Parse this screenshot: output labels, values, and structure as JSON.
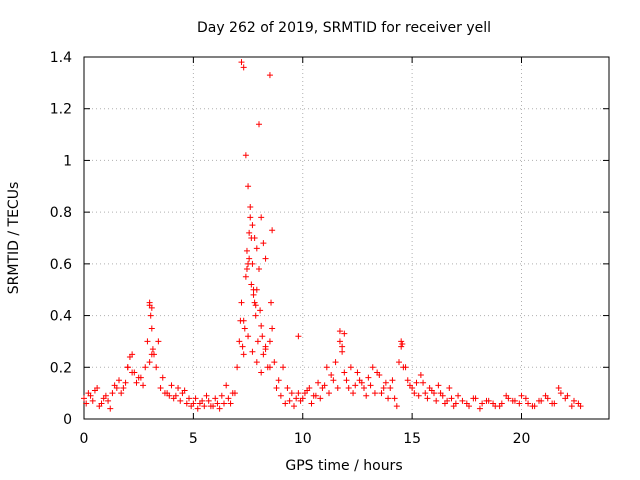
{
  "chart_data": {
    "type": "scatter",
    "title": "Day 262 of 2019, SRMTID for receiver yell",
    "xlabel": "GPS time / hours",
    "ylabel": "SRMTID / TECUs",
    "xlim": [
      0,
      24
    ],
    "ylim": [
      0,
      1.4
    ],
    "x_ticks": [
      0,
      5,
      10,
      15,
      20
    ],
    "x_tick_labels": [
      "0",
      "5",
      "10",
      "15",
      "20"
    ],
    "y_ticks": [
      0,
      0.2,
      0.4,
      0.6,
      0.8,
      1.0,
      1.2,
      1.4
    ],
    "y_tick_labels": [
      "0",
      "0.2",
      "0.4",
      "0.6",
      "0.8",
      "1",
      "1.2",
      "1.4"
    ],
    "grid": true,
    "marker": "+",
    "color": "#ff0000",
    "series": [
      {
        "name": "SRMTID",
        "x": [
          0.0,
          0.2,
          0.4,
          0.6,
          0.8,
          1.0,
          1.2,
          1.4,
          1.6,
          1.8,
          2.0,
          2.1,
          2.2,
          2.4,
          2.6,
          2.8,
          2.9,
          3.0,
          3.05,
          3.1,
          3.15,
          3.2,
          3.3,
          3.5,
          3.7,
          3.9,
          4.1,
          4.3,
          4.5,
          4.7,
          4.9,
          5.1,
          5.3,
          5.5,
          5.7,
          5.9,
          6.1,
          6.3,
          6.5,
          6.7,
          6.9,
          7.0,
          7.1,
          7.15,
          7.2,
          7.25,
          7.3,
          7.35,
          7.4,
          7.45,
          7.5,
          7.55,
          7.6,
          7.65,
          7.7,
          7.75,
          7.8,
          7.85,
          7.9,
          7.95,
          8.0,
          8.05,
          8.1,
          8.15,
          8.2,
          8.3,
          8.4,
          8.5,
          8.55,
          8.6,
          8.7,
          8.9,
          9.1,
          9.3,
          9.5,
          9.7,
          9.9,
          10.1,
          10.3,
          10.5,
          10.7,
          10.9,
          11.1,
          11.3,
          11.5,
          11.7,
          11.8,
          11.9,
          12.0,
          12.2,
          12.4,
          12.6,
          12.8,
          13.0,
          13.2,
          13.4,
          13.6,
          13.8,
          14.0,
          14.2,
          14.4,
          14.5,
          14.6,
          14.8,
          15.0,
          15.2,
          15.4,
          15.6,
          15.8,
          16.0,
          16.2,
          16.4,
          16.6,
          16.8,
          17.0,
          17.3,
          17.6,
          17.9,
          18.2,
          18.5,
          18.8,
          19.1,
          19.4,
          19.7,
          20.0,
          20.3,
          20.6,
          20.9,
          21.2,
          21.5,
          21.8,
          22.1,
          22.4,
          22.7,
          0.1,
          0.3,
          0.5,
          0.7,
          0.9,
          1.1,
          1.3,
          1.5,
          1.7,
          1.9,
          2.3,
          2.5,
          2.7,
          3.0,
          3.1,
          3.4,
          3.6,
          3.8,
          4.0,
          4.2,
          4.4,
          4.6,
          4.8,
          5.0,
          5.2,
          5.4,
          5.6,
          5.8,
          6.0,
          6.2,
          6.4,
          6.6,
          6.8,
          7.3,
          7.5,
          7.7,
          7.9,
          8.1,
          8.3,
          8.5,
          8.8,
          9.0,
          9.2,
          9.4,
          9.6,
          9.8,
          10.0,
          10.2,
          10.4,
          10.6,
          10.8,
          11.0,
          11.2,
          11.4,
          11.6,
          11.8,
          12.1,
          12.3,
          12.5,
          12.7,
          12.9,
          13.1,
          13.3,
          13.5,
          13.7,
          13.9,
          14.1,
          14.3,
          14.7,
          14.9,
          15.1,
          15.3,
          15.5,
          15.7,
          15.9,
          16.1,
          16.3,
          16.5,
          16.7,
          16.9,
          17.1,
          17.5,
          17.8,
          18.1,
          18.4,
          18.7,
          19.0,
          19.3,
          19.6,
          19.9,
          20.2,
          20.5,
          20.8,
          21.1,
          21.4,
          21.7,
          22.0,
          22.3,
          22.6,
          7.2,
          7.3,
          8.0,
          8.5,
          7.4,
          7.5,
          7.6,
          7.7,
          7.8,
          7.9,
          8.1,
          8.2,
          8.3,
          7.45,
          7.55,
          7.65,
          7.75,
          7.85,
          8.6,
          9.8,
          11.7,
          11.9,
          14.5,
          14.55,
          3.0,
          3.1,
          2.2,
          2.0
        ],
        "y": [
          0.08,
          0.1,
          0.07,
          0.12,
          0.06,
          0.09,
          0.04,
          0.13,
          0.15,
          0.12,
          0.2,
          0.24,
          0.18,
          0.14,
          0.16,
          0.2,
          0.3,
          0.44,
          0.4,
          0.35,
          0.27,
          0.25,
          0.2,
          0.12,
          0.1,
          0.09,
          0.08,
          0.12,
          0.1,
          0.06,
          0.05,
          0.08,
          0.06,
          0.05,
          0.07,
          0.05,
          0.06,
          0.09,
          0.13,
          0.06,
          0.1,
          0.2,
          0.3,
          0.38,
          0.45,
          0.28,
          0.25,
          0.35,
          0.55,
          0.65,
          0.6,
          0.72,
          0.78,
          0.7,
          0.6,
          0.5,
          0.45,
          0.4,
          0.5,
          0.3,
          0.58,
          0.42,
          0.36,
          0.32,
          0.25,
          0.28,
          0.2,
          0.3,
          0.45,
          0.35,
          0.22,
          0.15,
          0.2,
          0.12,
          0.1,
          0.08,
          0.07,
          0.1,
          0.12,
          0.09,
          0.14,
          0.12,
          0.2,
          0.17,
          0.22,
          0.3,
          0.26,
          0.18,
          0.15,
          0.2,
          0.13,
          0.15,
          0.12,
          0.16,
          0.2,
          0.18,
          0.1,
          0.14,
          0.12,
          0.08,
          0.22,
          0.28,
          0.2,
          0.15,
          0.12,
          0.14,
          0.17,
          0.1,
          0.12,
          0.1,
          0.13,
          0.09,
          0.07,
          0.08,
          0.06,
          0.07,
          0.05,
          0.08,
          0.06,
          0.07,
          0.05,
          0.06,
          0.08,
          0.07,
          0.09,
          0.06,
          0.05,
          0.07,
          0.08,
          0.06,
          0.1,
          0.09,
          0.07,
          0.05,
          0.06,
          0.09,
          0.11,
          0.05,
          0.08,
          0.07,
          0.1,
          0.12,
          0.1,
          0.14,
          0.18,
          0.16,
          0.13,
          0.22,
          0.25,
          0.3,
          0.16,
          0.1,
          0.13,
          0.09,
          0.07,
          0.11,
          0.08,
          0.06,
          0.04,
          0.07,
          0.09,
          0.05,
          0.08,
          0.04,
          0.06,
          0.08,
          0.1,
          0.38,
          0.32,
          0.26,
          0.22,
          0.18,
          0.27,
          0.2,
          0.12,
          0.09,
          0.06,
          0.07,
          0.05,
          0.1,
          0.08,
          0.11,
          0.06,
          0.09,
          0.08,
          0.13,
          0.1,
          0.15,
          0.12,
          0.28,
          0.12,
          0.1,
          0.18,
          0.14,
          0.09,
          0.13,
          0.1,
          0.17,
          0.12,
          0.08,
          0.15,
          0.05,
          0.2,
          0.13,
          0.1,
          0.09,
          0.14,
          0.08,
          0.11,
          0.07,
          0.1,
          0.06,
          0.12,
          0.05,
          0.09,
          0.06,
          0.08,
          0.04,
          0.07,
          0.06,
          0.05,
          0.09,
          0.07,
          0.06,
          0.08,
          0.05,
          0.07,
          0.09,
          0.06,
          0.12,
          0.08,
          0.05,
          0.06,
          1.38,
          1.36,
          1.14,
          1.33,
          1.02,
          0.9,
          0.82,
          0.75,
          0.7,
          0.66,
          0.78,
          0.68,
          0.62,
          0.58,
          0.62,
          0.52,
          0.48,
          0.44,
          0.73,
          0.32,
          0.34,
          0.33,
          0.3,
          0.29,
          0.45,
          0.43,
          0.25,
          0.2
        ]
      }
    ]
  }
}
